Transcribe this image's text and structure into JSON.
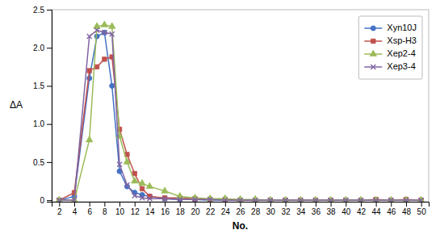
{
  "chart_data": {
    "type": "line",
    "xlabel": "No.",
    "ylabel": "ΔA",
    "xlim": [
      1,
      51
    ],
    "ylim": [
      -0.02,
      2.5
    ],
    "xticks": [
      2,
      4,
      6,
      8,
      10,
      12,
      14,
      16,
      18,
      20,
      22,
      24,
      26,
      28,
      30,
      32,
      34,
      36,
      38,
      40,
      42,
      44,
      46,
      48,
      50
    ],
    "yticks": [
      0,
      0.5,
      {
        "value": 1,
        "label": "1.0"
      },
      1.5,
      {
        "value": 2,
        "label": "2.0"
      },
      2.5
    ],
    "x": [
      2,
      4,
      6,
      7,
      8,
      9,
      10,
      11,
      12,
      13,
      14,
      16,
      18,
      20,
      22,
      24,
      26,
      28,
      30,
      32,
      34,
      36,
      38,
      40,
      42,
      44,
      46,
      48,
      50
    ],
    "series": [
      {
        "name": "Xyn10J",
        "color": "#4472C4",
        "marker": "circle",
        "values": [
          0.0,
          0.05,
          1.6,
          2.15,
          2.2,
          1.5,
          0.38,
          0.18,
          0.1,
          0.07,
          0.05,
          0.02,
          0.01,
          0.01,
          0.0,
          0.0,
          0.0,
          0.0,
          0.0,
          0.0,
          0.0,
          0.0,
          0.0,
          0.0,
          0.0,
          0.0,
          0.0,
          0.0,
          0.0
        ]
      },
      {
        "name": "Xsp-H3",
        "color": "#C0504D",
        "marker": "square",
        "values": [
          0.0,
          0.1,
          1.7,
          1.75,
          1.85,
          1.88,
          0.93,
          0.6,
          0.35,
          0.15,
          0.05,
          0.03,
          0.03,
          0.02,
          0.01,
          0.01,
          0.0,
          0.0,
          0.0,
          0.0,
          0.0,
          0.0,
          0.0,
          0.0,
          0.0,
          0.01,
          0.0,
          0.01,
          0.0
        ]
      },
      {
        "name": "Xep2-4",
        "color": "#9BBB59",
        "marker": "triangle",
        "values": [
          0.0,
          0.0,
          0.79,
          2.28,
          2.3,
          2.28,
          0.84,
          0.5,
          0.25,
          0.22,
          0.18,
          0.12,
          0.05,
          0.03,
          0.02,
          0.02,
          0.01,
          0.01,
          0.0,
          0.0,
          0.0,
          0.0,
          0.0,
          0.0,
          0.0,
          0.0,
          0.0,
          0.0,
          0.0
        ]
      },
      {
        "name": "Xep3-4",
        "color": "#8064A2",
        "marker": "x",
        "values": [
          0.0,
          0.0,
          2.15,
          2.23,
          2.2,
          2.18,
          0.47,
          0.2,
          0.06,
          0.03,
          0.02,
          0.02,
          0.01,
          0.01,
          0.01,
          0.0,
          0.0,
          0.0,
          0.0,
          0.0,
          0.0,
          0.0,
          0.0,
          0.0,
          0.0,
          0.0,
          0.0,
          0.0,
          0.0
        ]
      }
    ],
    "legend": "upper right",
    "grid": false
  }
}
